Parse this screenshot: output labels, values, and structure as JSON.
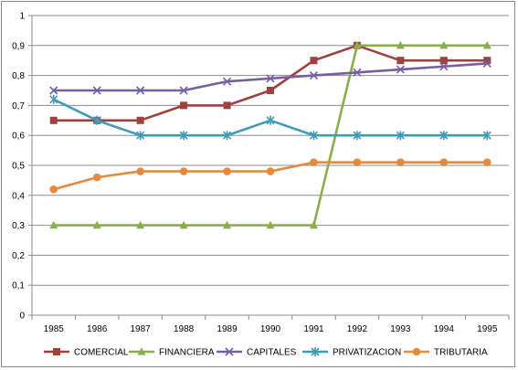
{
  "chart_data": {
    "type": "line",
    "title": "",
    "xlabel": "",
    "ylabel": "",
    "x": [
      "1985",
      "1986",
      "1987",
      "1988",
      "1989",
      "1990",
      "1991",
      "1992",
      "1993",
      "1994",
      "1995"
    ],
    "ylim": [
      0,
      1
    ],
    "yticks": [
      0,
      0.1,
      0.2,
      0.3,
      0.4,
      0.5,
      0.6,
      0.7,
      0.8,
      0.9,
      1
    ],
    "ytick_labels": [
      "0",
      "0,1",
      "0,2",
      "0,3",
      "0,4",
      "0,5",
      "0,6",
      "0,7",
      "0,8",
      "0,9",
      "1"
    ],
    "grid": "horizontal",
    "legend_position": "bottom",
    "series": [
      {
        "name": "COMERCIAL",
        "color": "#A0413E",
        "marker": "square",
        "values": [
          0.65,
          0.65,
          0.65,
          0.7,
          0.7,
          0.75,
          0.85,
          0.9,
          0.85,
          0.85,
          0.85
        ]
      },
      {
        "name": "FINANCIERA",
        "color": "#8AAE4B",
        "marker": "triangle",
        "values": [
          0.3,
          0.3,
          0.3,
          0.3,
          0.3,
          0.3,
          0.3,
          0.9,
          0.9,
          0.9,
          0.9
        ]
      },
      {
        "name": "CAPITALES",
        "color": "#7460A0",
        "marker": "x",
        "values": [
          0.75,
          0.75,
          0.75,
          0.75,
          0.78,
          0.79,
          0.8,
          0.81,
          0.82,
          0.83,
          0.84
        ]
      },
      {
        "name": "PRIVATIZACION",
        "color": "#3F9CB4",
        "marker": "star",
        "values": [
          0.72,
          0.65,
          0.6,
          0.6,
          0.6,
          0.65,
          0.6,
          0.6,
          0.6,
          0.6,
          0.6
        ]
      },
      {
        "name": "TRIBUTARIA",
        "color": "#E38B3E",
        "marker": "circle",
        "values": [
          0.42,
          0.46,
          0.48,
          0.48,
          0.48,
          0.48,
          0.51,
          0.51,
          0.51,
          0.51,
          0.51
        ]
      }
    ]
  }
}
